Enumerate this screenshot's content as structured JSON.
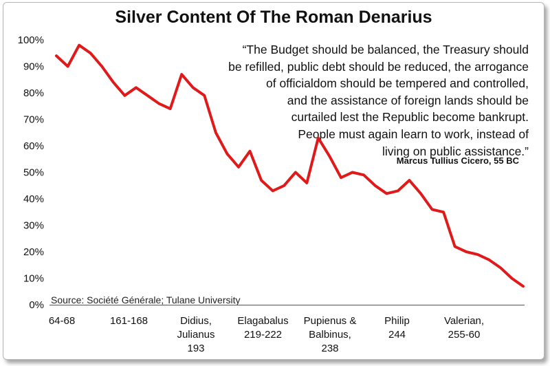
{
  "chart_data": {
    "type": "line",
    "title": "Silver Content Of The Roman Denarius",
    "xlabel": "",
    "ylabel": "",
    "ylim": [
      0,
      100
    ],
    "yticks": [
      "0%",
      "10%",
      "20%",
      "30%",
      "40%",
      "50%",
      "60%",
      "70%",
      "80%",
      "90%",
      "100%"
    ],
    "xtick_labels": [
      [
        "64-68"
      ],
      [
        "161-168"
      ],
      [
        "Didius,",
        "Julianus",
        "193"
      ],
      [
        "Elagabalus",
        "219-222"
      ],
      [
        "Pupienus &",
        "Balbinus,",
        "238"
      ],
      [
        "Philip",
        "244"
      ],
      [
        "Valerian,",
        "255-60"
      ]
    ],
    "series": [
      {
        "color": "#e01a1a",
        "values": [
          94,
          90,
          98,
          95,
          90,
          84,
          79,
          82,
          79,
          76,
          74,
          87,
          82,
          79,
          65,
          57,
          52,
          58,
          47,
          43,
          45,
          50,
          46,
          63,
          56,
          48,
          50,
          49,
          45,
          42,
          43,
          47,
          42,
          36,
          35,
          22,
          20,
          19,
          17,
          14,
          10,
          7
        ]
      }
    ],
    "grid": false,
    "legend": "none",
    "annotations": {
      "quote_lines": [
        "“The Budget should be balanced, the Treasury should",
        "be refilled, public debt should be reduced, the arrogance",
        "of officialdom should be tempered and controlled,",
        "and the assistance of foreign lands should be",
        "curtailed lest the Republic become bankrupt.",
        "People must again learn to work, instead of",
        "living on public assistance.”"
      ],
      "attribution": "Marcus Tullius Cicero, 55 BC",
      "source": "Source: Société Générale; Tulane University"
    }
  }
}
